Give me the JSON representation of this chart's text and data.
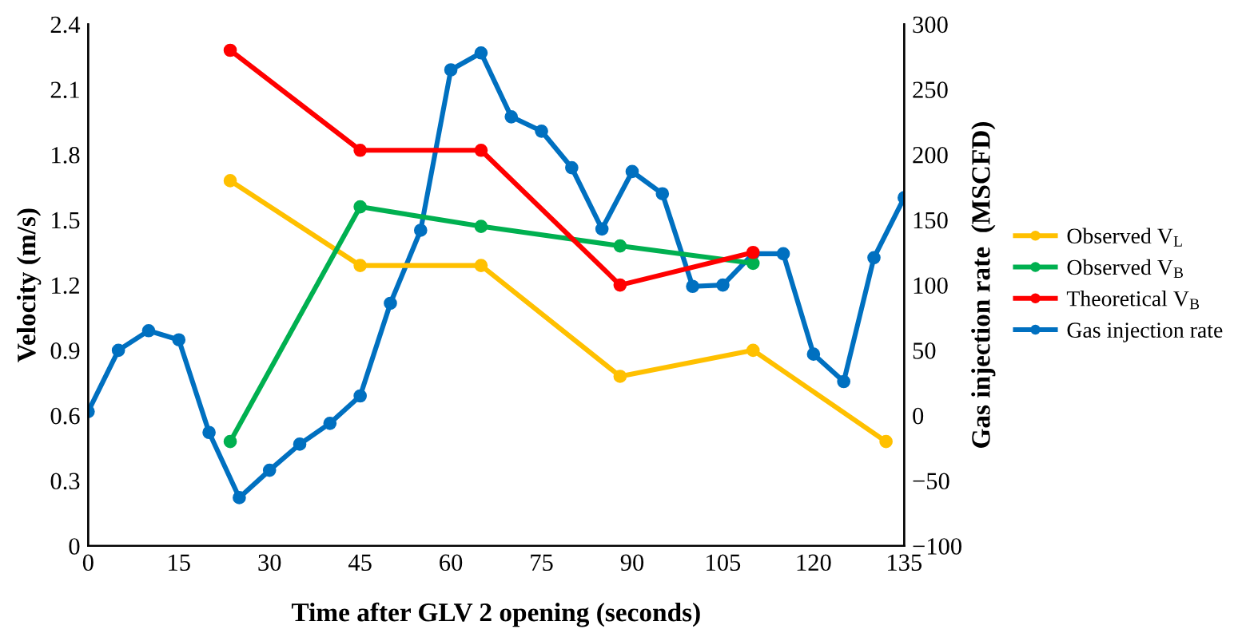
{
  "chart_data": {
    "type": "line",
    "xlabel": "Time after GLV 2 opening (seconds)",
    "ylabel": "Velocity (m/s)",
    "y2label": "Gas injection rate  (MSCFD)",
    "xlim": [
      0,
      135
    ],
    "xticks": [
      0,
      15,
      30,
      45,
      60,
      75,
      90,
      105,
      120,
      135
    ],
    "ylim": [
      0,
      2.4
    ],
    "yticks": [
      0,
      0.3,
      0.6,
      0.9,
      1.2,
      1.5,
      1.8,
      2.1,
      2.4
    ],
    "y2lim": [
      -100,
      300
    ],
    "y2ticks": [
      -100,
      -50,
      0,
      50,
      100,
      150,
      200,
      250,
      300
    ],
    "grid": false,
    "legend": "right",
    "marker": "circle",
    "line_style": "solid",
    "series": [
      {
        "name": "Observed V$_{L}$",
        "color": "#ffc000",
        "x": [
          23.5,
          45,
          65,
          88,
          110,
          132
        ],
        "values": [
          1.68,
          1.29,
          1.29,
          0.78,
          0.9,
          0.48
        ]
      },
      {
        "name": "Observed V$_{B}$",
        "color": "#00b050",
        "x": [
          23.5,
          45,
          65,
          88,
          110
        ],
        "values": [
          0.48,
          1.56,
          1.47,
          1.38,
          1.3
        ]
      },
      {
        "name": "Theoretical V$_{B}$",
        "color": "#ff0000",
        "x": [
          23.5,
          45,
          65,
          88,
          110
        ],
        "values": [
          2.28,
          1.82,
          1.82,
          1.2,
          1.35
        ]
      },
      {
        "name": "Gas injection rate",
        "color": "#0070c0",
        "axis": "y2",
        "x": [
          0,
          5,
          10,
          15,
          20,
          25,
          30,
          35,
          40,
          45,
          50,
          55,
          60,
          65,
          70,
          75,
          80,
          85,
          90,
          95,
          100,
          105,
          110,
          115,
          120,
          125,
          130,
          135
        ],
        "values": [
          3,
          50,
          65,
          58,
          -13,
          -63,
          -42,
          -22,
          -6,
          15,
          86,
          142,
          265,
          278,
          229,
          218,
          190,
          143,
          187,
          170,
          99,
          100,
          124,
          124,
          47,
          26,
          121,
          167
        ]
      }
    ]
  }
}
